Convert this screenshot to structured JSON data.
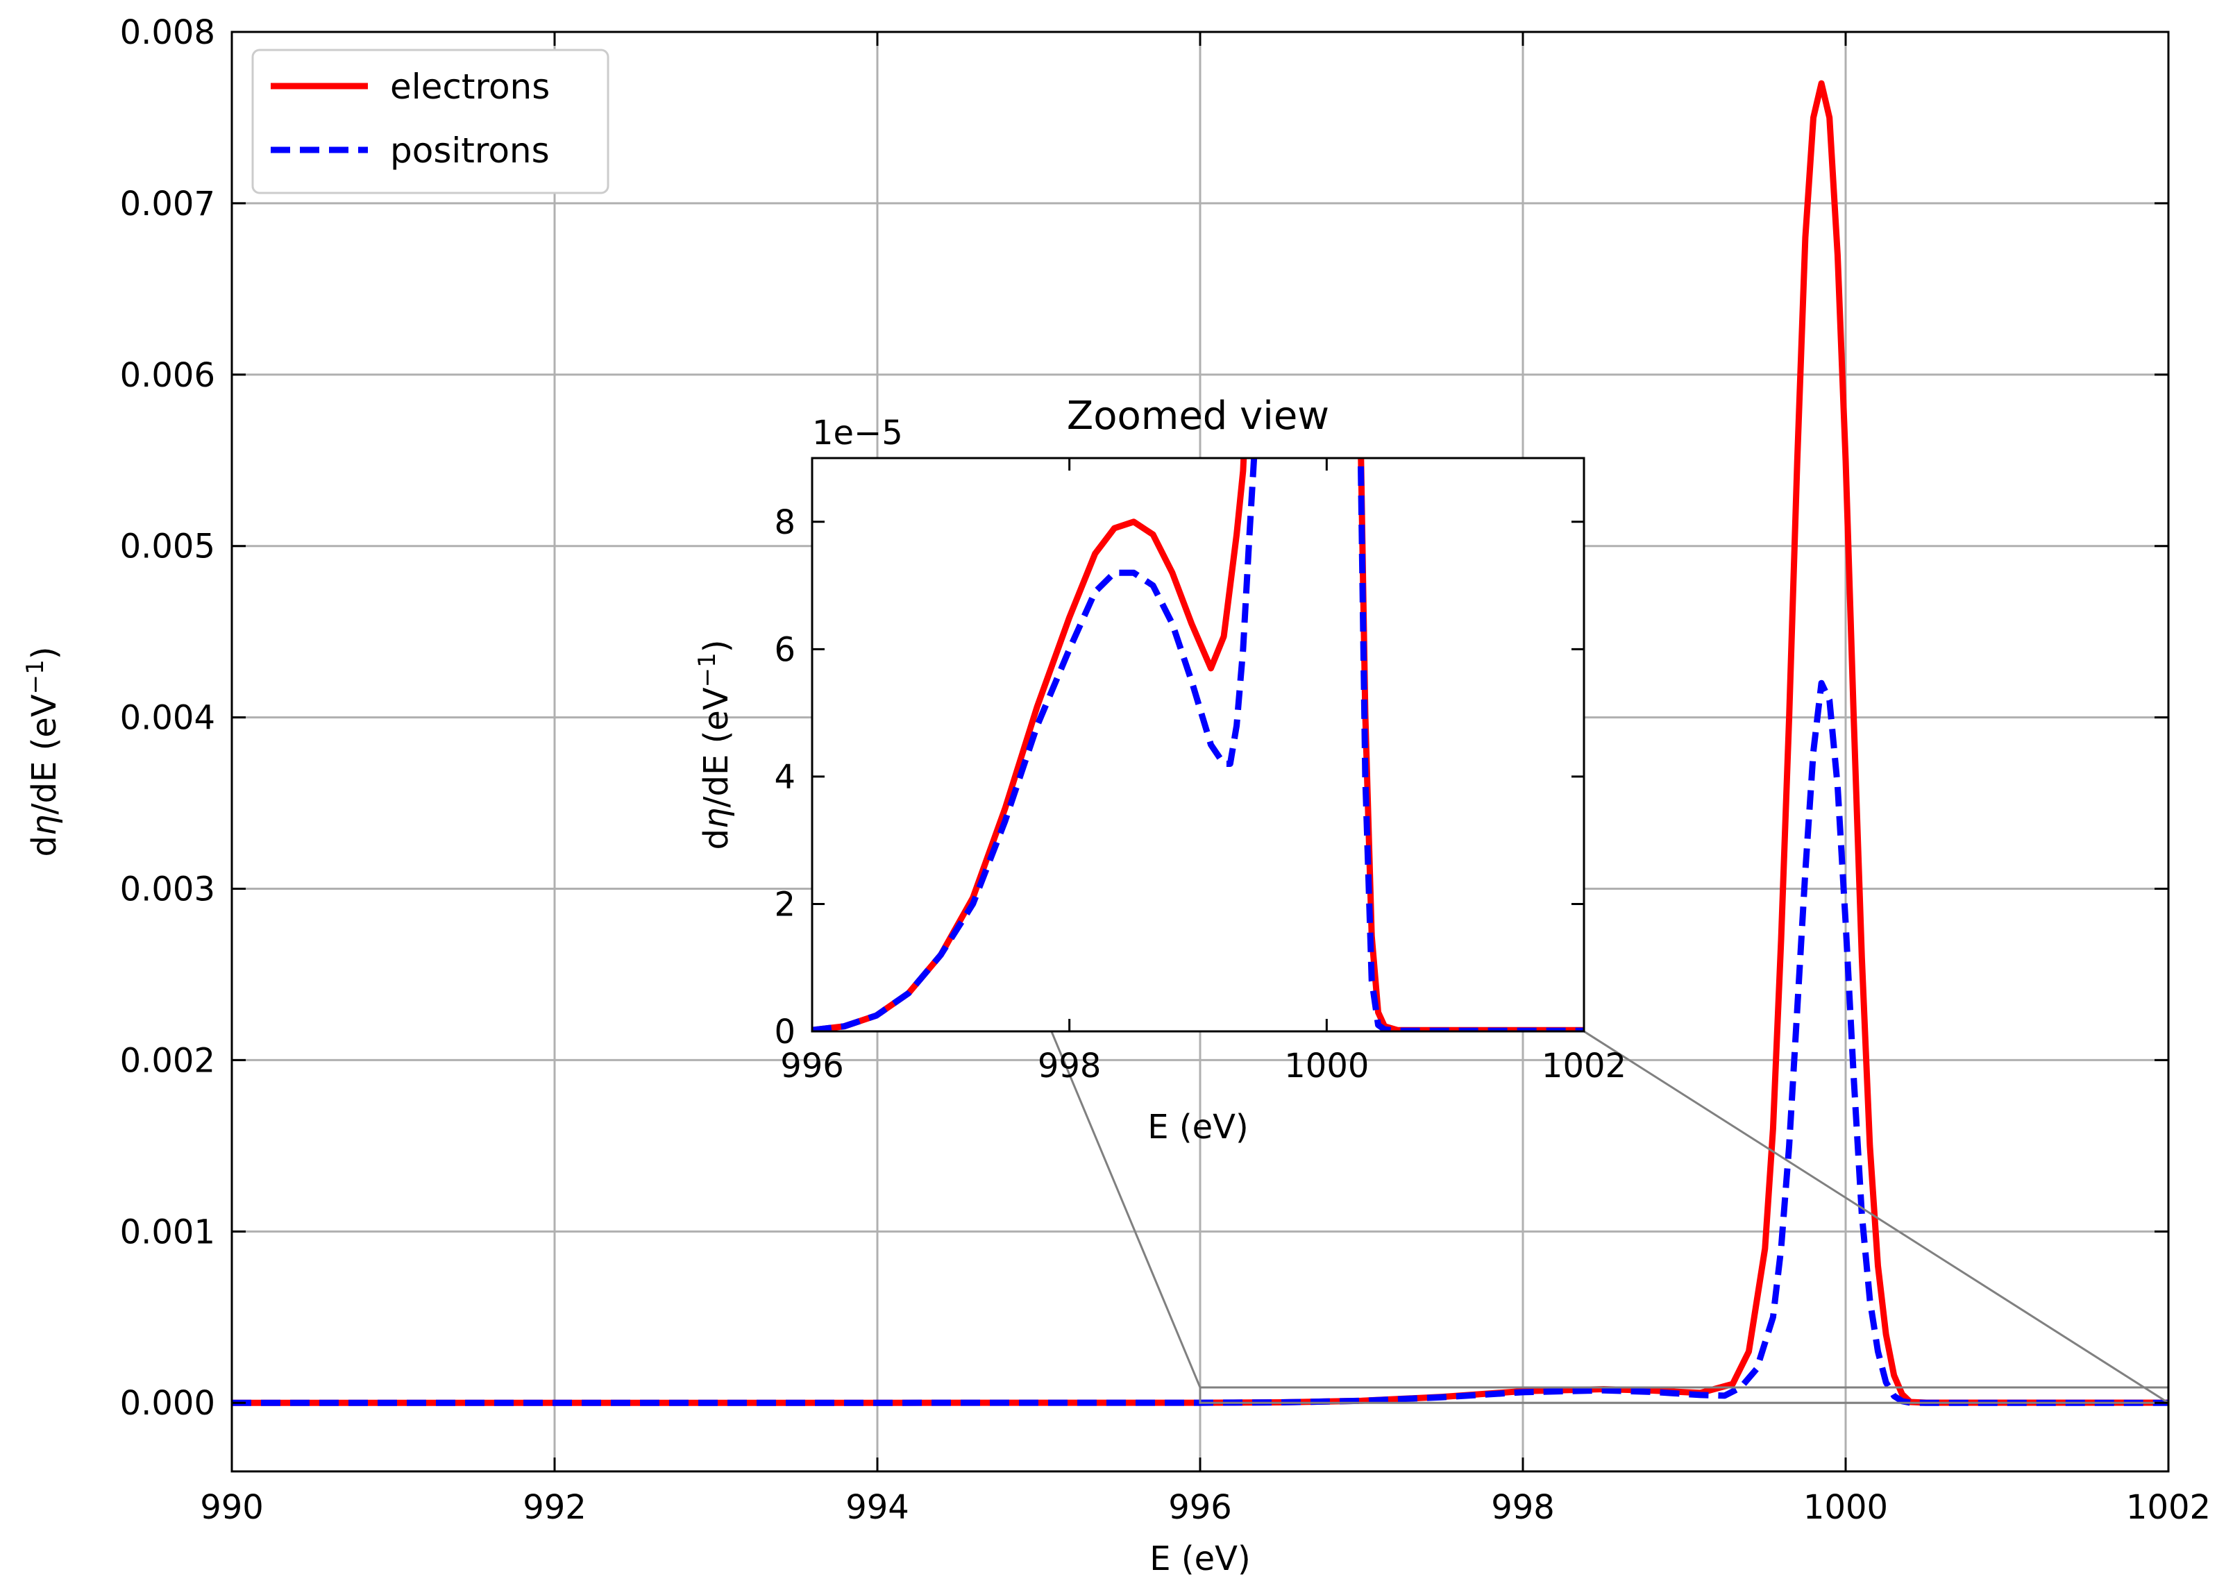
{
  "chart_data": [
    {
      "id": "main",
      "type": "line",
      "title": "",
      "xlabel": "E (eV)",
      "ylabel": "dη/dE (eV⁻¹)",
      "ylabel_parts": {
        "pre": "d",
        "eta": "η",
        "post": "/dE (eV",
        "sup": "−1",
        "close": ")"
      },
      "xlim": [
        990,
        1002
      ],
      "ylim": [
        -0.0004,
        0.008
      ],
      "xticks": [
        990,
        992,
        994,
        996,
        998,
        1000,
        1002
      ],
      "xtick_labels": [
        "990",
        "992",
        "994",
        "996",
        "998",
        "1000",
        "1002"
      ],
      "yticks": [
        0,
        0.001,
        0.002,
        0.003,
        0.004,
        0.005,
        0.006,
        0.007,
        0.008
      ],
      "ytick_labels": [
        "0.000",
        "0.001",
        "0.002",
        "0.003",
        "0.004",
        "0.005",
        "0.006",
        "0.007",
        "0.008"
      ],
      "grid": true,
      "legend": {
        "placement": "top-left",
        "entries": [
          {
            "label": "electrons",
            "color": "#ff0000",
            "style": "solid"
          },
          {
            "label": "positrons",
            "color": "#0000ff",
            "style": "dashed"
          }
        ]
      },
      "zoom_region": {
        "x": [
          996,
          1002
        ],
        "y": [
          0,
          9e-05
        ]
      },
      "series": [
        {
          "name": "electrons",
          "color": "#ff0000",
          "style": "solid",
          "x": [
            990,
            994,
            996,
            996.5,
            997,
            997.5,
            998,
            998.5,
            998.8,
            999.1,
            999.3,
            999.4,
            999.5,
            999.55,
            999.6,
            999.65,
            999.7,
            999.75,
            999.8,
            999.85,
            999.9,
            999.95,
            1000,
            1000.05,
            1000.1,
            1000.15,
            1000.2,
            1000.25,
            1000.3,
            1000.35,
            1000.4,
            1000.5,
            1000.8,
            1002
          ],
          "y": [
            0,
            0,
            5e-07,
            3e-06,
            1.2e-05,
            3.5e-05,
            6.8e-05,
            8e-05,
            7.2e-05,
            5.8e-05,
            0.00011,
            0.0003,
            0.0009,
            0.0016,
            0.0027,
            0.004,
            0.0055,
            0.0068,
            0.0075,
            0.0077,
            0.0075,
            0.0067,
            0.0055,
            0.004,
            0.0026,
            0.0015,
            0.0008,
            0.0004,
            0.00016,
            5e-05,
            5e-06,
            1e-06,
            1e-06,
            1e-06
          ]
        },
        {
          "name": "positrons",
          "color": "#0000ff",
          "style": "dashed",
          "x": [
            990,
            994,
            996,
            996.5,
            997,
            997.5,
            998,
            998.5,
            998.8,
            999.1,
            999.25,
            999.35,
            999.45,
            999.55,
            999.6,
            999.65,
            999.7,
            999.75,
            999.8,
            999.85,
            999.9,
            999.95,
            1000,
            1000.05,
            1000.1,
            1000.15,
            1000.2,
            1000.25,
            1000.3,
            1000.35,
            1000.4,
            1000.5,
            1000.8,
            1002
          ],
          "y": [
            0,
            0,
            5e-07,
            3e-06,
            1.2e-05,
            3.3e-05,
            6.2e-05,
            7.3e-05,
            6.4e-05,
            4.6e-05,
            4.2e-05,
            9e-05,
            0.0002,
            0.0005,
            0.0009,
            0.0015,
            0.0023,
            0.0031,
            0.0038,
            0.0042,
            0.0041,
            0.0036,
            0.0028,
            0.0019,
            0.0011,
            0.0006,
            0.0003,
            0.00012,
            4e-05,
            1e-05,
            1e-06,
            0,
            0,
            0
          ]
        }
      ]
    },
    {
      "id": "inset",
      "type": "line",
      "title": "Zoomed view",
      "offset_text": "1e−5",
      "xlabel": "E (eV)",
      "ylabel": "dη/dE (eV⁻¹)",
      "ylabel_parts": {
        "pre": "d",
        "eta": "η",
        "post": "/dE (eV",
        "sup": "−1",
        "close": ")"
      },
      "xlim": [
        996,
        1002
      ],
      "ylim": [
        0,
        9e-05
      ],
      "xticks": [
        996,
        998,
        1000,
        1002
      ],
      "xtick_labels": [
        "996",
        "998",
        "1000",
        "1002"
      ],
      "yticks": [
        0,
        2e-05,
        4e-05,
        6e-05,
        8e-05
      ],
      "ytick_labels": [
        "0",
        "2",
        "4",
        "6",
        "8"
      ],
      "grid": false,
      "series": [
        {
          "name": "electrons",
          "color": "#ff0000",
          "style": "solid",
          "x": [
            996,
            996.25,
            996.5,
            996.75,
            997,
            997.25,
            997.5,
            997.75,
            998,
            998.2,
            998.35,
            998.5,
            998.65,
            998.8,
            998.95,
            999.1,
            999.2,
            999.3,
            999.35,
            999.4,
            1000.25,
            1000.3,
            1000.35,
            1000.4,
            1000.45,
            1000.55,
            1001,
            1002
          ],
          "y": [
            2e-07,
            8e-07,
            2.5e-06,
            6e-06,
            1.2e-05,
            2.1e-05,
            3.5e-05,
            5.1e-05,
            6.5e-05,
            7.5e-05,
            7.9e-05,
            8e-05,
            7.8e-05,
            7.2e-05,
            6.4e-05,
            5.7e-05,
            6.2e-05,
            7.8e-05,
            8.8e-05,
            0.00011,
            0.00011,
            5e-05,
            1.5e-05,
            3e-06,
            8e-07,
            2e-07,
            2e-07,
            2e-07
          ]
        },
        {
          "name": "positrons",
          "color": "#0000ff",
          "style": "dashed",
          "x": [
            996,
            996.25,
            996.5,
            996.75,
            997,
            997.25,
            997.5,
            997.75,
            998,
            998.2,
            998.35,
            998.5,
            998.65,
            998.8,
            998.95,
            999.1,
            999.2,
            999.25,
            999.3,
            999.35,
            999.4,
            999.45,
            999.5,
            1000.25,
            1000.3,
            1000.35,
            1000.4,
            1000.45,
            1000.55,
            1001,
            1002
          ],
          "y": [
            2e-07,
            8e-07,
            2.5e-06,
            6e-06,
            1.2e-05,
            2e-05,
            3.3e-05,
            4.8e-05,
            6e-05,
            6.9e-05,
            7.2e-05,
            7.2e-05,
            7e-05,
            6.4e-05,
            5.5e-05,
            4.5e-05,
            4.2e-05,
            4.2e-05,
            4.8e-05,
            6e-05,
            7.8e-05,
            9.5e-05,
            0.00011,
            0.00011,
            4e-05,
            8e-06,
            1e-06,
            3e-07,
            1e-07,
            1e-07,
            1e-07
          ]
        }
      ]
    }
  ]
}
